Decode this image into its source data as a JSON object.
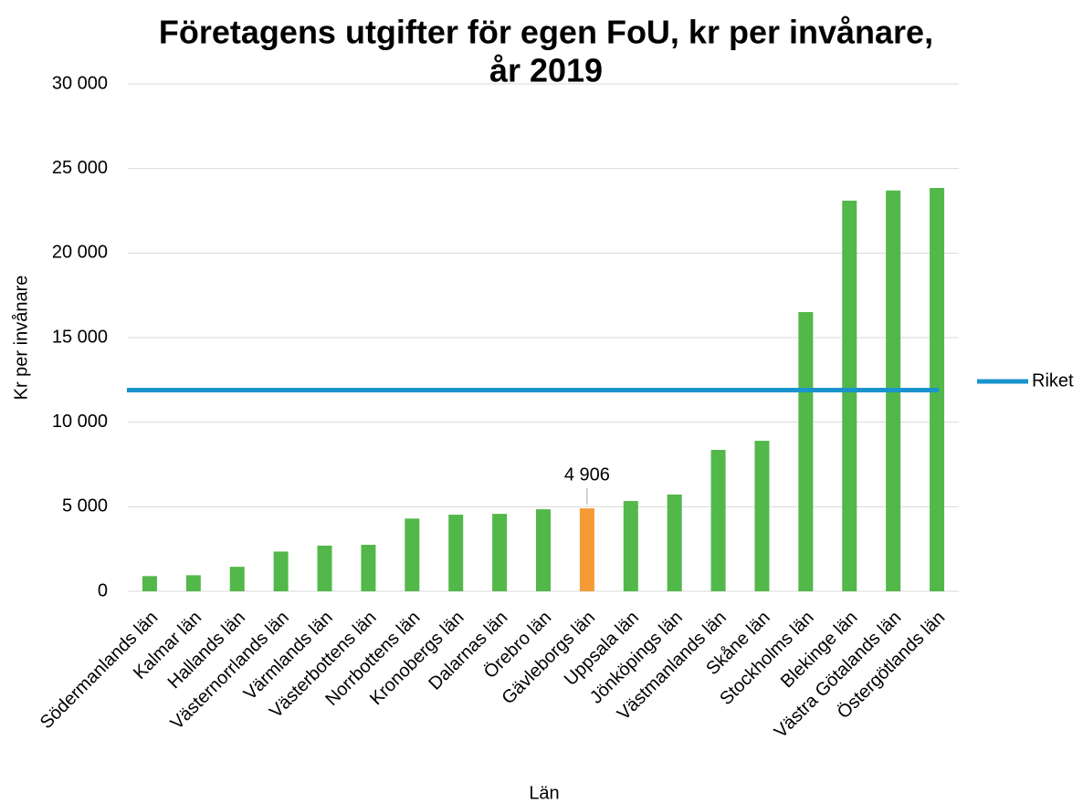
{
  "chart_data": {
    "type": "bar",
    "title": [
      "Företagens utgifter för egen FoU, kr per invånare,",
      "år 2019"
    ],
    "x_label": "Län",
    "y_label": "Kr per invånare",
    "categories": [
      "Södermanlands län",
      "Kalmar län",
      "Hallands län",
      "Västernorrlands län",
      "Värmlands län",
      "Västerbottens län",
      "Norrbottens län",
      "Kronobergs län",
      "Dalarnas län",
      "Örebro län",
      "Gävleborgs län",
      "Uppsala län",
      "Jönköpings län",
      "Västmanlands län",
      "Skåne län",
      "Stockholms län",
      "Blekinge län",
      "Västra Götalands län",
      "Östergötlands län"
    ],
    "values": [
      900,
      950,
      1450,
      2350,
      2700,
      2750,
      4300,
      4530,
      4580,
      4850,
      4906,
      5340,
      5720,
      8360,
      8900,
      16510,
      23100,
      23700,
      23850
    ],
    "value_labels": [
      null,
      null,
      null,
      null,
      null,
      null,
      null,
      null,
      null,
      null,
      "4 906",
      null,
      null,
      null,
      null,
      null,
      null,
      null,
      null
    ],
    "bar_colors": [
      "#52b849",
      "#52b849",
      "#52b849",
      "#52b849",
      "#52b849",
      "#52b849",
      "#52b849",
      "#52b849",
      "#52b849",
      "#52b849",
      "#f49b36",
      "#52b849",
      "#52b849",
      "#52b849",
      "#52b849",
      "#52b849",
      "#52b849",
      "#52b849",
      "#52b849"
    ],
    "reference_lines": [
      {
        "name": "Riket",
        "value": 11900,
        "color": "#1a94cc"
      }
    ],
    "ylim": [
      0,
      30000
    ],
    "yticks": [
      0,
      {
        "value": 5000,
        "label": "5 000"
      },
      {
        "value": 10000,
        "label": "10 000"
      },
      {
        "value": 15000,
        "label": "15 000"
      },
      {
        "value": 20000,
        "label": "20 000"
      },
      {
        "value": 25000,
        "label": "25 000"
      },
      {
        "value": 30000,
        "label": "30 000"
      }
    ],
    "grid": true,
    "legend": "right"
  }
}
